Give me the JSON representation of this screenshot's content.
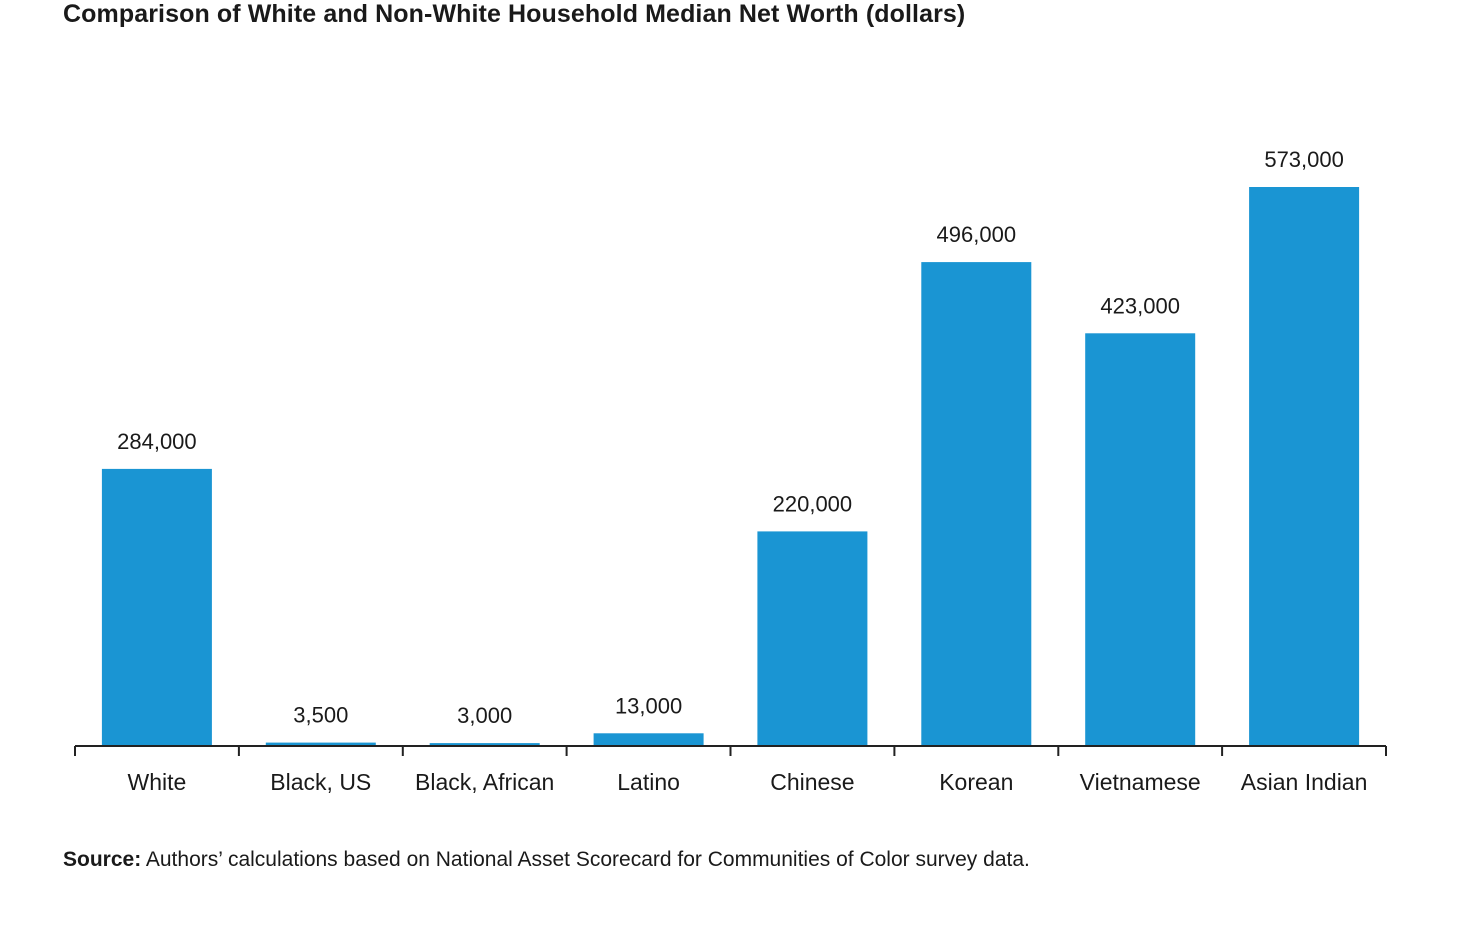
{
  "title": "Comparison of White and Non-White Household Median Net Worth (dollars)",
  "source": {
    "label": "Source:",
    "text": " Authors’ calculations based on National Asset Scorecard for Communities of Color survey data."
  },
  "colors": {
    "bar": "#1a95d3",
    "axis": "#222222",
    "text": "#1a1a1a"
  },
  "chart_data": {
    "type": "bar",
    "title": "Comparison of White and Non-White Household Median Net Worth (dollars)",
    "xlabel": "",
    "ylabel": "",
    "categories": [
      "White",
      "Black, US",
      "Black, African",
      "Latino",
      "Chinese",
      "Korean",
      "Vietnamese",
      "Asian Indian"
    ],
    "values": [
      284000,
      3500,
      3000,
      13000,
      220000,
      496000,
      423000,
      573000
    ],
    "data_labels": [
      "284,000",
      "3,500",
      "3,000",
      "13,000",
      "220,000",
      "496,000",
      "423,000",
      "573,000"
    ],
    "ylim": [
      0,
      573000
    ],
    "grid": false,
    "legend": "none"
  }
}
